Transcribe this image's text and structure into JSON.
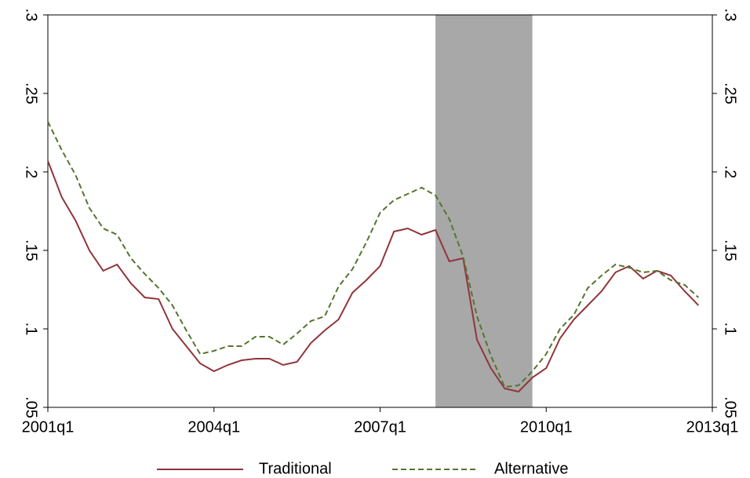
{
  "chart_data": {
    "type": "line",
    "x": [
      "2001q1",
      "2001q2",
      "2001q3",
      "2001q4",
      "2002q1",
      "2002q2",
      "2002q3",
      "2002q4",
      "2003q1",
      "2003q2",
      "2003q3",
      "2003q4",
      "2004q1",
      "2004q2",
      "2004q3",
      "2004q4",
      "2005q1",
      "2005q2",
      "2005q3",
      "2005q4",
      "2006q1",
      "2006q2",
      "2006q3",
      "2006q4",
      "2007q1",
      "2007q2",
      "2007q3",
      "2007q4",
      "2008q1",
      "2008q2",
      "2008q3",
      "2008q4",
      "2009q1",
      "2009q2",
      "2009q3",
      "2009q4",
      "2010q1",
      "2010q2",
      "2010q3",
      "2010q4",
      "2011q1",
      "2011q2",
      "2011q3",
      "2011q4",
      "2012q1",
      "2012q2",
      "2012q3",
      "2012q4"
    ],
    "series": [
      {
        "name": "Traditional",
        "color": "#90353b",
        "dash": false,
        "values": [
          0.207,
          0.184,
          0.169,
          0.15,
          0.137,
          0.141,
          0.129,
          0.12,
          0.119,
          0.1,
          0.089,
          0.078,
          0.073,
          0.077,
          0.08,
          0.081,
          0.081,
          0.077,
          0.079,
          0.091,
          0.099,
          0.106,
          0.123,
          0.131,
          0.14,
          0.162,
          0.164,
          0.16,
          0.163,
          0.143,
          0.145,
          0.093,
          0.075,
          0.062,
          0.06,
          0.069,
          0.075,
          0.094,
          0.106,
          0.115,
          0.124,
          0.136,
          0.14,
          0.132,
          0.137,
          0.134,
          0.124,
          0.115
        ]
      },
      {
        "name": "Alternative",
        "color": "#55752f",
        "dash": true,
        "values": [
          0.232,
          0.214,
          0.198,
          0.177,
          0.164,
          0.16,
          0.145,
          0.135,
          0.126,
          0.115,
          0.099,
          0.084,
          0.086,
          0.089,
          0.089,
          0.095,
          0.095,
          0.09,
          0.097,
          0.105,
          0.108,
          0.127,
          0.138,
          0.155,
          0.174,
          0.182,
          0.186,
          0.19,
          0.185,
          0.17,
          0.146,
          0.108,
          0.083,
          0.063,
          0.064,
          0.073,
          0.084,
          0.1,
          0.109,
          0.126,
          0.134,
          0.141,
          0.139,
          0.136,
          0.137,
          0.131,
          0.128,
          0.12
        ]
      }
    ],
    "shaded": [
      "2008q1",
      "2009q4"
    ],
    "shade_color": "#a8a8a8",
    "xlim": [
      "2001q1",
      "2013q1"
    ],
    "xticks": [
      "2001q1",
      "2004q1",
      "2007q1",
      "2010q1",
      "2013q1"
    ],
    "ylim": [
      0.05,
      0.3
    ],
    "yticks": [
      {
        "value": 0.05,
        "label": ".05"
      },
      {
        "value": 0.1,
        "label": ".1"
      },
      {
        "value": 0.15,
        "label": ".15"
      },
      {
        "value": 0.2,
        "label": ".2"
      },
      {
        "value": 0.25,
        "label": ".25"
      },
      {
        "value": 0.3,
        "label": ".3"
      }
    ],
    "y2lim": [
      0.05,
      0.3
    ],
    "y2ticks": [
      {
        "value": 0.05,
        "label": ".05"
      },
      {
        "value": 0.1,
        "label": ".1"
      },
      {
        "value": 0.15,
        "label": ".15"
      },
      {
        "value": 0.2,
        "label": ".2"
      },
      {
        "value": 0.25,
        "label": ".25"
      },
      {
        "value": 0.3,
        "label": ".3"
      }
    ],
    "legend": "bottom"
  }
}
